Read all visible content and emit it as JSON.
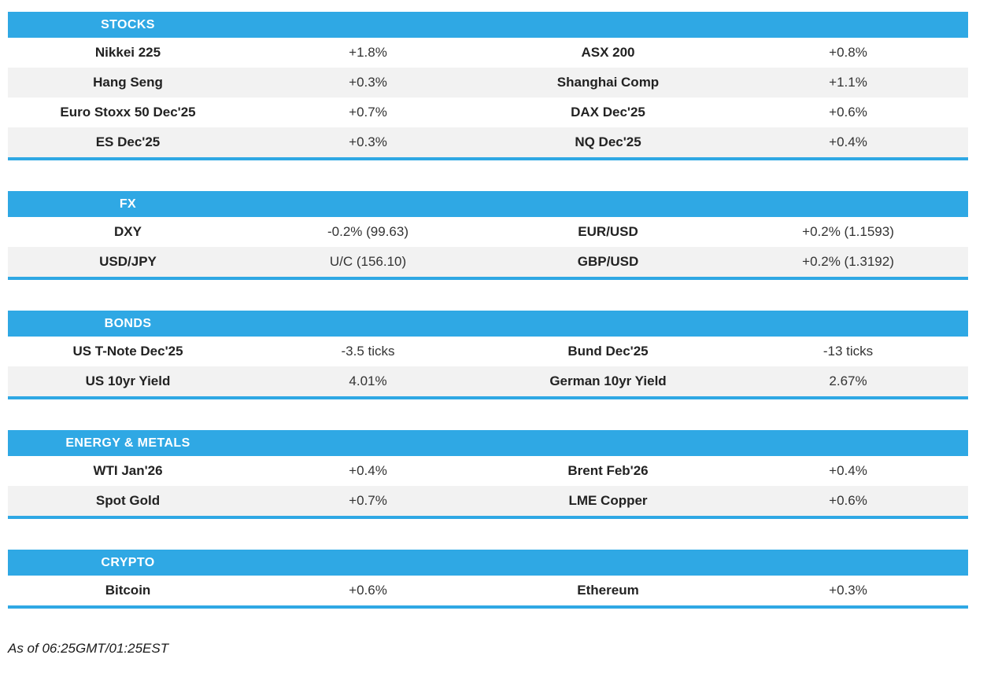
{
  "theme": {
    "accent": "#2FA8E4",
    "row_alt": "#F2F2F2",
    "header_text": "#FFFFFF",
    "name_text": "#222222",
    "value_text": "#333333",
    "footer_text": "#1A1A1A"
  },
  "sections": [
    {
      "title": "STOCKS",
      "rows": [
        {
          "cells": [
            "Nikkei 225",
            "+1.8%",
            "ASX 200",
            "+0.8%"
          ]
        },
        {
          "cells": [
            "Hang Seng",
            "+0.3%",
            "Shanghai Comp",
            "+1.1%"
          ]
        },
        {
          "cells": [
            "Euro Stoxx 50 Dec'25",
            "+0.7%",
            "DAX Dec'25",
            "+0.6%"
          ]
        },
        {
          "cells": [
            "ES Dec'25",
            "+0.3%",
            "NQ Dec'25",
            "+0.4%"
          ]
        }
      ]
    },
    {
      "title": "FX",
      "rows": [
        {
          "cells": [
            "DXY",
            "-0.2% (99.63)",
            "EUR/USD",
            "+0.2% (1.1593)"
          ]
        },
        {
          "cells": [
            "USD/JPY",
            "U/C (156.10)",
            "GBP/USD",
            "+0.2% (1.3192)"
          ]
        }
      ]
    },
    {
      "title": "BONDS",
      "rows": [
        {
          "cells": [
            "US T-Note Dec'25",
            "-3.5 ticks",
            "Bund Dec'25",
            "-13 ticks"
          ]
        },
        {
          "cells": [
            "US 10yr Yield",
            "4.01%",
            "German 10yr Yield",
            "2.67%"
          ]
        }
      ]
    },
    {
      "title": "ENERGY & METALS",
      "rows": [
        {
          "cells": [
            "WTI Jan'26",
            "+0.4%",
            "Brent Feb'26",
            "+0.4%"
          ]
        },
        {
          "cells": [
            "Spot Gold",
            "+0.7%",
            "LME Copper",
            "+0.6%"
          ]
        }
      ]
    },
    {
      "title": "CRYPTO",
      "rows": [
        {
          "cells": [
            "Bitcoin",
            "+0.6%",
            "Ethereum",
            "+0.3%"
          ]
        }
      ]
    }
  ],
  "footer": {
    "as_of": "As of 06:25GMT/01:25EST"
  },
  "chart_data": [
    {
      "type": "table",
      "title": "STOCKS",
      "rows": [
        [
          "Nikkei 225",
          "+1.8%",
          "ASX 200",
          "+0.8%"
        ],
        [
          "Hang Seng",
          "+0.3%",
          "Shanghai Comp",
          "+1.1%"
        ],
        [
          "Euro Stoxx 50 Dec'25",
          "+0.7%",
          "DAX Dec'25",
          "+0.6%"
        ],
        [
          "ES Dec'25",
          "+0.3%",
          "NQ Dec'25",
          "+0.4%"
        ]
      ]
    },
    {
      "type": "table",
      "title": "FX",
      "rows": [
        [
          "DXY",
          "-0.2% (99.63)",
          "EUR/USD",
          "+0.2% (1.1593)"
        ],
        [
          "USD/JPY",
          "U/C (156.10)",
          "GBP/USD",
          "+0.2% (1.3192)"
        ]
      ]
    },
    {
      "type": "table",
      "title": "BONDS",
      "rows": [
        [
          "US T-Note Dec'25",
          "-3.5 ticks",
          "Bund Dec'25",
          "-13 ticks"
        ],
        [
          "US 10yr Yield",
          "4.01%",
          "German 10yr Yield",
          "2.67%"
        ]
      ]
    },
    {
      "type": "table",
      "title": "ENERGY & METALS",
      "rows": [
        [
          "WTI Jan'26",
          "+0.4%",
          "Brent Feb'26",
          "+0.4%"
        ],
        [
          "Spot Gold",
          "+0.7%",
          "LME Copper",
          "+0.6%"
        ]
      ]
    },
    {
      "type": "table",
      "title": "CRYPTO",
      "rows": [
        [
          "Bitcoin",
          "+0.6%",
          "Ethereum",
          "+0.3%"
        ]
      ]
    }
  ]
}
